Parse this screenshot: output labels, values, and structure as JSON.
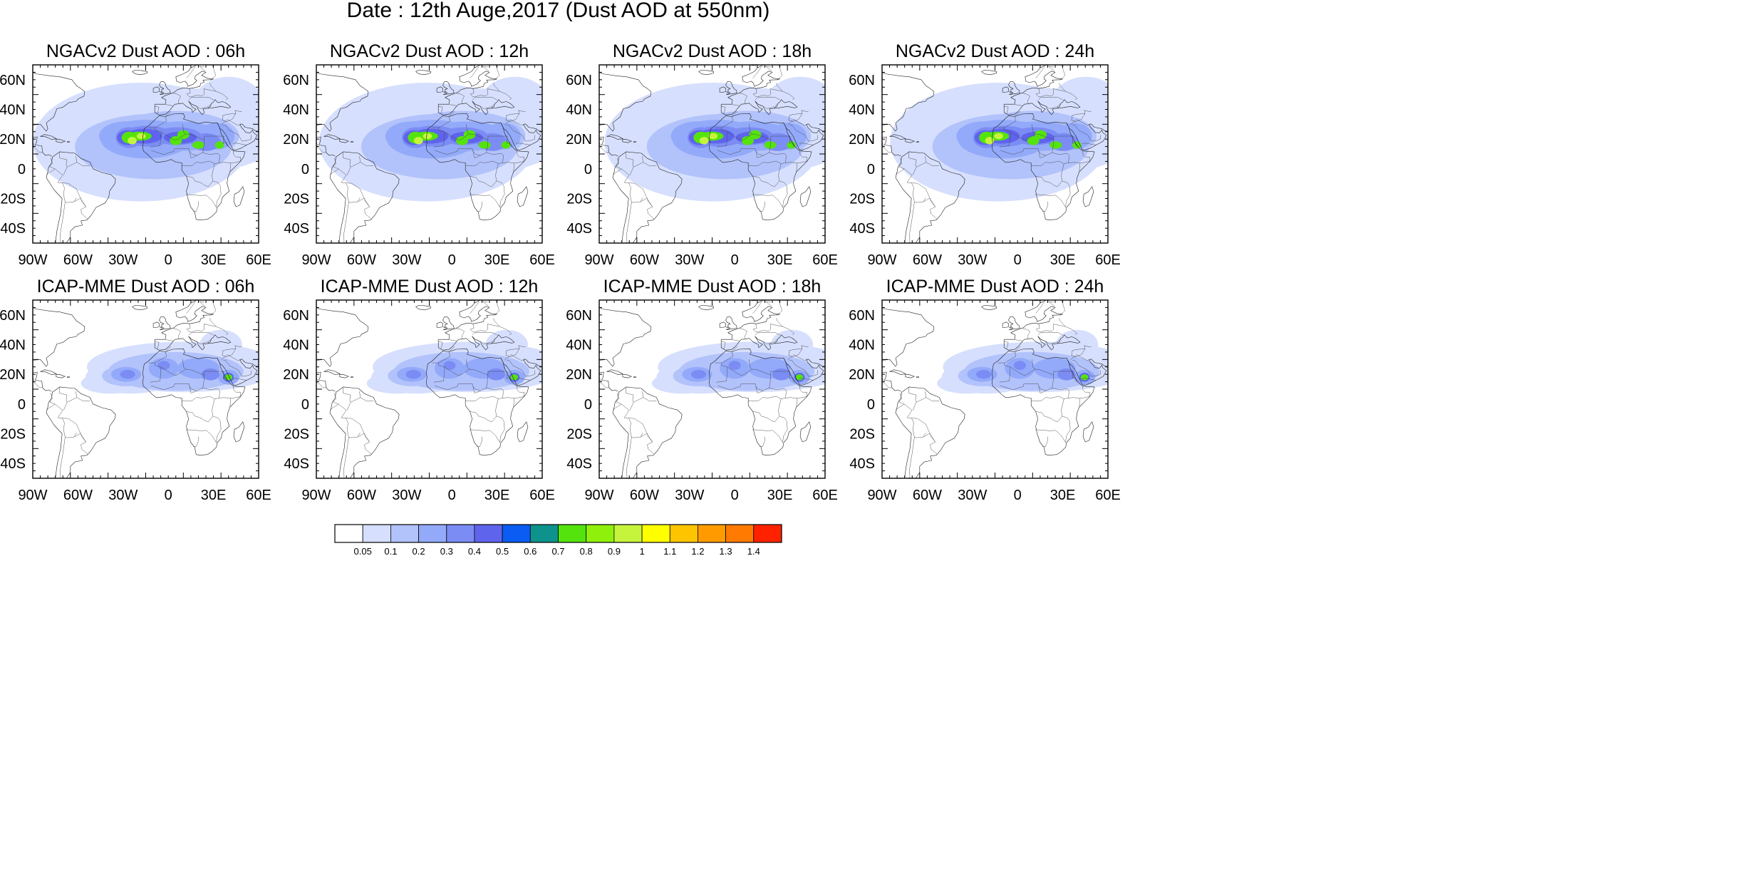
{
  "title": "Date : 12th Auge,2017 (Dust AOD at 550nm)",
  "map": {
    "lon_range": [
      -90,
      60
    ],
    "lat_range": [
      -50,
      70
    ],
    "lon_ticks": [
      "90W",
      "60W",
      "30W",
      "0",
      "30E",
      "60E"
    ],
    "lat_ticks": [
      "60N",
      "40N",
      "20N",
      "0",
      "20S",
      "40S"
    ]
  },
  "panels": [
    {
      "title": "NGACv2 Dust AOD : 06h",
      "model": "NGACv2",
      "hour": "06h"
    },
    {
      "title": "NGACv2 Dust AOD : 12h",
      "model": "NGACv2",
      "hour": "12h"
    },
    {
      "title": "NGACv2 Dust AOD : 18h",
      "model": "NGACv2",
      "hour": "18h"
    },
    {
      "title": "NGACv2 Dust AOD : 24h",
      "model": "NGACv2",
      "hour": "24h"
    },
    {
      "title": "ICAP-MME Dust AOD : 06h",
      "model": "ICAP-MME",
      "hour": "06h"
    },
    {
      "title": "ICAP-MME Dust AOD : 12h",
      "model": "ICAP-MME",
      "hour": "12h"
    },
    {
      "title": "ICAP-MME Dust AOD : 18h",
      "model": "ICAP-MME",
      "hour": "18h"
    },
    {
      "title": "ICAP-MME Dust AOD : 24h",
      "model": "ICAP-MME",
      "hour": "24h"
    }
  ],
  "colorbar": {
    "labels": [
      "0.05",
      "0.1",
      "0.2",
      "0.3",
      "0.4",
      "0.5",
      "0.6",
      "0.7",
      "0.8",
      "0.9",
      "1",
      "1.1",
      "1.2",
      "1.3",
      "1.4"
    ],
    "colors": [
      "#ffffff",
      "#d6dffd",
      "#b2c2fb",
      "#93aafa",
      "#7b8cf4",
      "#5f64ec",
      "#0b5cf2",
      "#0d938c",
      "#55e30e",
      "#8ff00b",
      "#c6f43d",
      "#ffff00",
      "#ffc400",
      "#ff9b00",
      "#ff7a00",
      "#ff2200"
    ]
  }
}
